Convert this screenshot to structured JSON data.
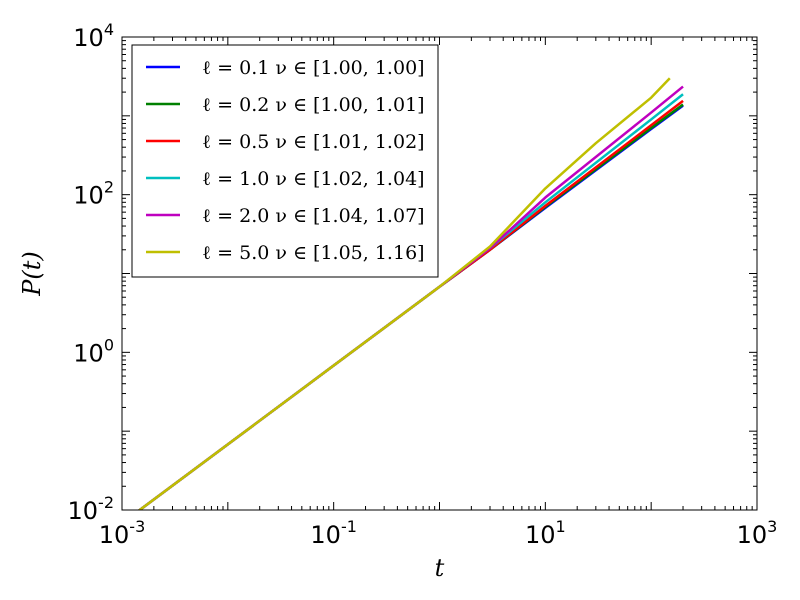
{
  "chart_data": {
    "type": "line",
    "xlabel": "t",
    "ylabel": "P(t)",
    "xscale": "log",
    "yscale": "log",
    "xlim": [
      0.001,
      1000
    ],
    "ylim": [
      0.01,
      10000
    ],
    "grid": false,
    "legend_position": "top-left",
    "x_ticks": [
      {
        "base": "10",
        "exp": "-3"
      },
      {
        "base": "10",
        "exp": "-1"
      },
      {
        "base": "10",
        "exp": "1"
      },
      {
        "base": "10",
        "exp": "3"
      }
    ],
    "y_ticks": [
      {
        "base": "10",
        "exp": "-2"
      },
      {
        "base": "10",
        "exp": "0"
      },
      {
        "base": "10",
        "exp": "2"
      },
      {
        "base": "10",
        "exp": "4"
      }
    ],
    "series": [
      {
        "name": "ℓ = 0.1   ν ∈ [1.00, 1.00]",
        "color": "#0000ff",
        "x": [
          0.001,
          0.01,
          0.1,
          1,
          3,
          10,
          100,
          200
        ],
        "y": [
          0.0068,
          0.068,
          0.68,
          6.8,
          20,
          68,
          680,
          1350
        ]
      },
      {
        "name": "ℓ = 0.2   ν ∈ [1.00, 1.01]",
        "color": "#008000",
        "x": [
          0.001,
          0.01,
          0.1,
          1,
          3,
          10,
          100,
          200
        ],
        "y": [
          0.0068,
          0.068,
          0.68,
          6.8,
          20,
          70,
          700,
          1390
        ]
      },
      {
        "name": "ℓ = 0.5   ν ∈ [1.01, 1.02]",
        "color": "#ff0000",
        "x": [
          0.001,
          0.01,
          0.1,
          1,
          3,
          10,
          100,
          200
        ],
        "y": [
          0.0068,
          0.068,
          0.68,
          6.8,
          20,
          72,
          760,
          1550
        ]
      },
      {
        "name": "ℓ = 1.0   ν ∈ [1.02, 1.04]",
        "color": "#00bfbf",
        "x": [
          0.001,
          0.01,
          0.1,
          1,
          3,
          10,
          100,
          200
        ],
        "y": [
          0.0068,
          0.068,
          0.68,
          6.8,
          21,
          80,
          900,
          1880
        ]
      },
      {
        "name": "ℓ = 2.0   ν ∈ [1.04, 1.07]",
        "color": "#bf00bf",
        "x": [
          0.001,
          0.01,
          0.1,
          1,
          3,
          10,
          100,
          200
        ],
        "y": [
          0.0068,
          0.068,
          0.68,
          6.8,
          21,
          92,
          1100,
          2350
        ]
      },
      {
        "name": "ℓ = 5.0   ν ∈ [1.05, 1.16]",
        "color": "#bfbf00",
        "x": [
          0.001,
          0.01,
          0.1,
          1,
          3,
          10,
          30,
          100,
          150
        ],
        "y": [
          0.0068,
          0.068,
          0.68,
          6.8,
          22,
          120,
          450,
          1700,
          3000
        ]
      }
    ]
  }
}
